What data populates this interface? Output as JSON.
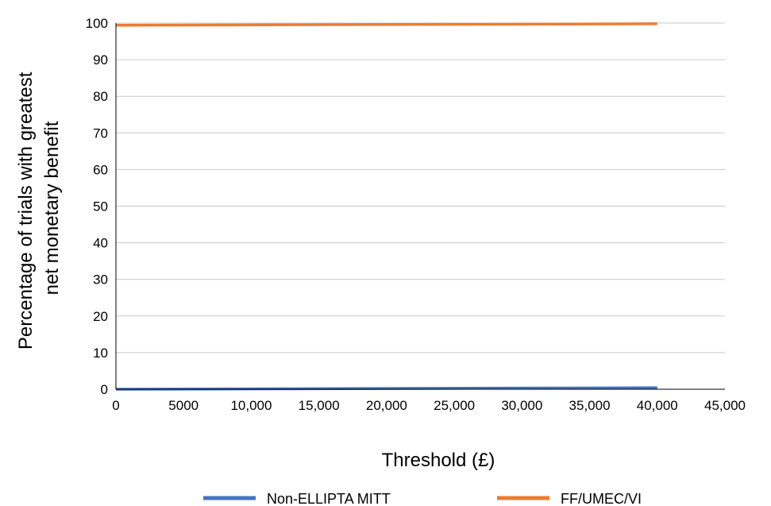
{
  "chart_data": {
    "type": "line",
    "xlabel": "Threshold (£)",
    "ylabel_lines": [
      "Percentage of trials with greatest",
      "net monetary benefit"
    ],
    "xlim": [
      0,
      45000
    ],
    "ylim": [
      0,
      100
    ],
    "x_ticks": [
      0,
      5000,
      10000,
      15000,
      20000,
      25000,
      30000,
      35000,
      40000,
      45000
    ],
    "x_tick_labels": [
      "0",
      "5000",
      "10,000",
      "15,000",
      "20,000",
      "25,000",
      "30,000",
      "35,000",
      "40,000",
      "45,000"
    ],
    "y_ticks": [
      0,
      10,
      20,
      30,
      40,
      50,
      60,
      70,
      80,
      90,
      100
    ],
    "y_tick_labels": [
      "0",
      "10",
      "20",
      "30",
      "40",
      "50",
      "60",
      "70",
      "80",
      "90",
      "100"
    ],
    "grid": "horizontal",
    "legend_position": "bottom",
    "series": [
      {
        "name": "Non-ELLIPTA MITT",
        "color": "#4472c4",
        "x": [
          0,
          40000
        ],
        "y": [
          0,
          0.4
        ]
      },
      {
        "name": "FF/UMEC/VI",
        "color": "#ed7d31",
        "x": [
          0,
          40000
        ],
        "y": [
          99.4,
          99.8
        ]
      }
    ]
  }
}
